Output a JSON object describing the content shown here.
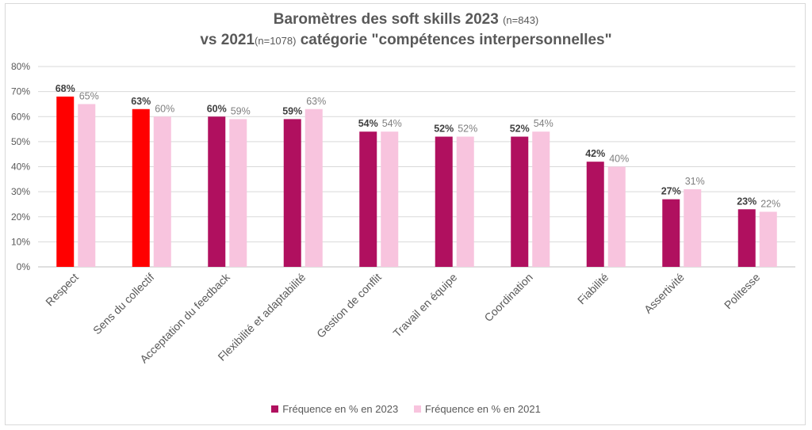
{
  "title": {
    "line1": "Baromètres des soft skills 2023",
    "line1_note": "(n=843)",
    "line2a": "vs 2021",
    "line2_note": "(n=1078)",
    "line2b": "catégorie \"compétences interpersonnelles\""
  },
  "colors": {
    "series_2023": "#b0105f",
    "series_2021": "#f8c4de",
    "highlight": "#ff0000",
    "grid": "#d9d9d9"
  },
  "chart_data": {
    "type": "bar",
    "categories": [
      "Respect",
      "Sens du collectif",
      "Acceptation du feedback",
      "Flexibilité et adaptabilité",
      "Gestion de conflit",
      "Travail en équipe",
      "Coordination",
      "Fiabilité",
      "Assertivité",
      "Politesse"
    ],
    "series": [
      {
        "name": "Fréquence en % en 2023",
        "values": [
          68,
          63,
          60,
          59,
          54,
          52,
          52,
          42,
          27,
          23
        ],
        "labels": [
          "68%",
          "63%",
          "60%",
          "59%",
          "54%",
          "52%",
          "52%",
          "42%",
          "27%",
          "23%"
        ],
        "highlighted": [
          true,
          true,
          false,
          false,
          false,
          false,
          false,
          false,
          false,
          false
        ]
      },
      {
        "name": "Fréquence en % en 2021",
        "values": [
          65,
          60,
          59,
          63,
          54,
          52,
          54,
          40,
          31,
          22
        ],
        "labels": [
          "65%",
          "60%",
          "59%",
          "63%",
          "54%",
          "52%",
          "54%",
          "40%",
          "31%",
          "22%"
        ]
      }
    ],
    "yticks": [
      "0%",
      "10%",
      "20%",
      "30%",
      "40%",
      "50%",
      "60%",
      "70%",
      "80%"
    ],
    "ylim": [
      0,
      80
    ],
    "grid": true,
    "legend": "bottom"
  }
}
